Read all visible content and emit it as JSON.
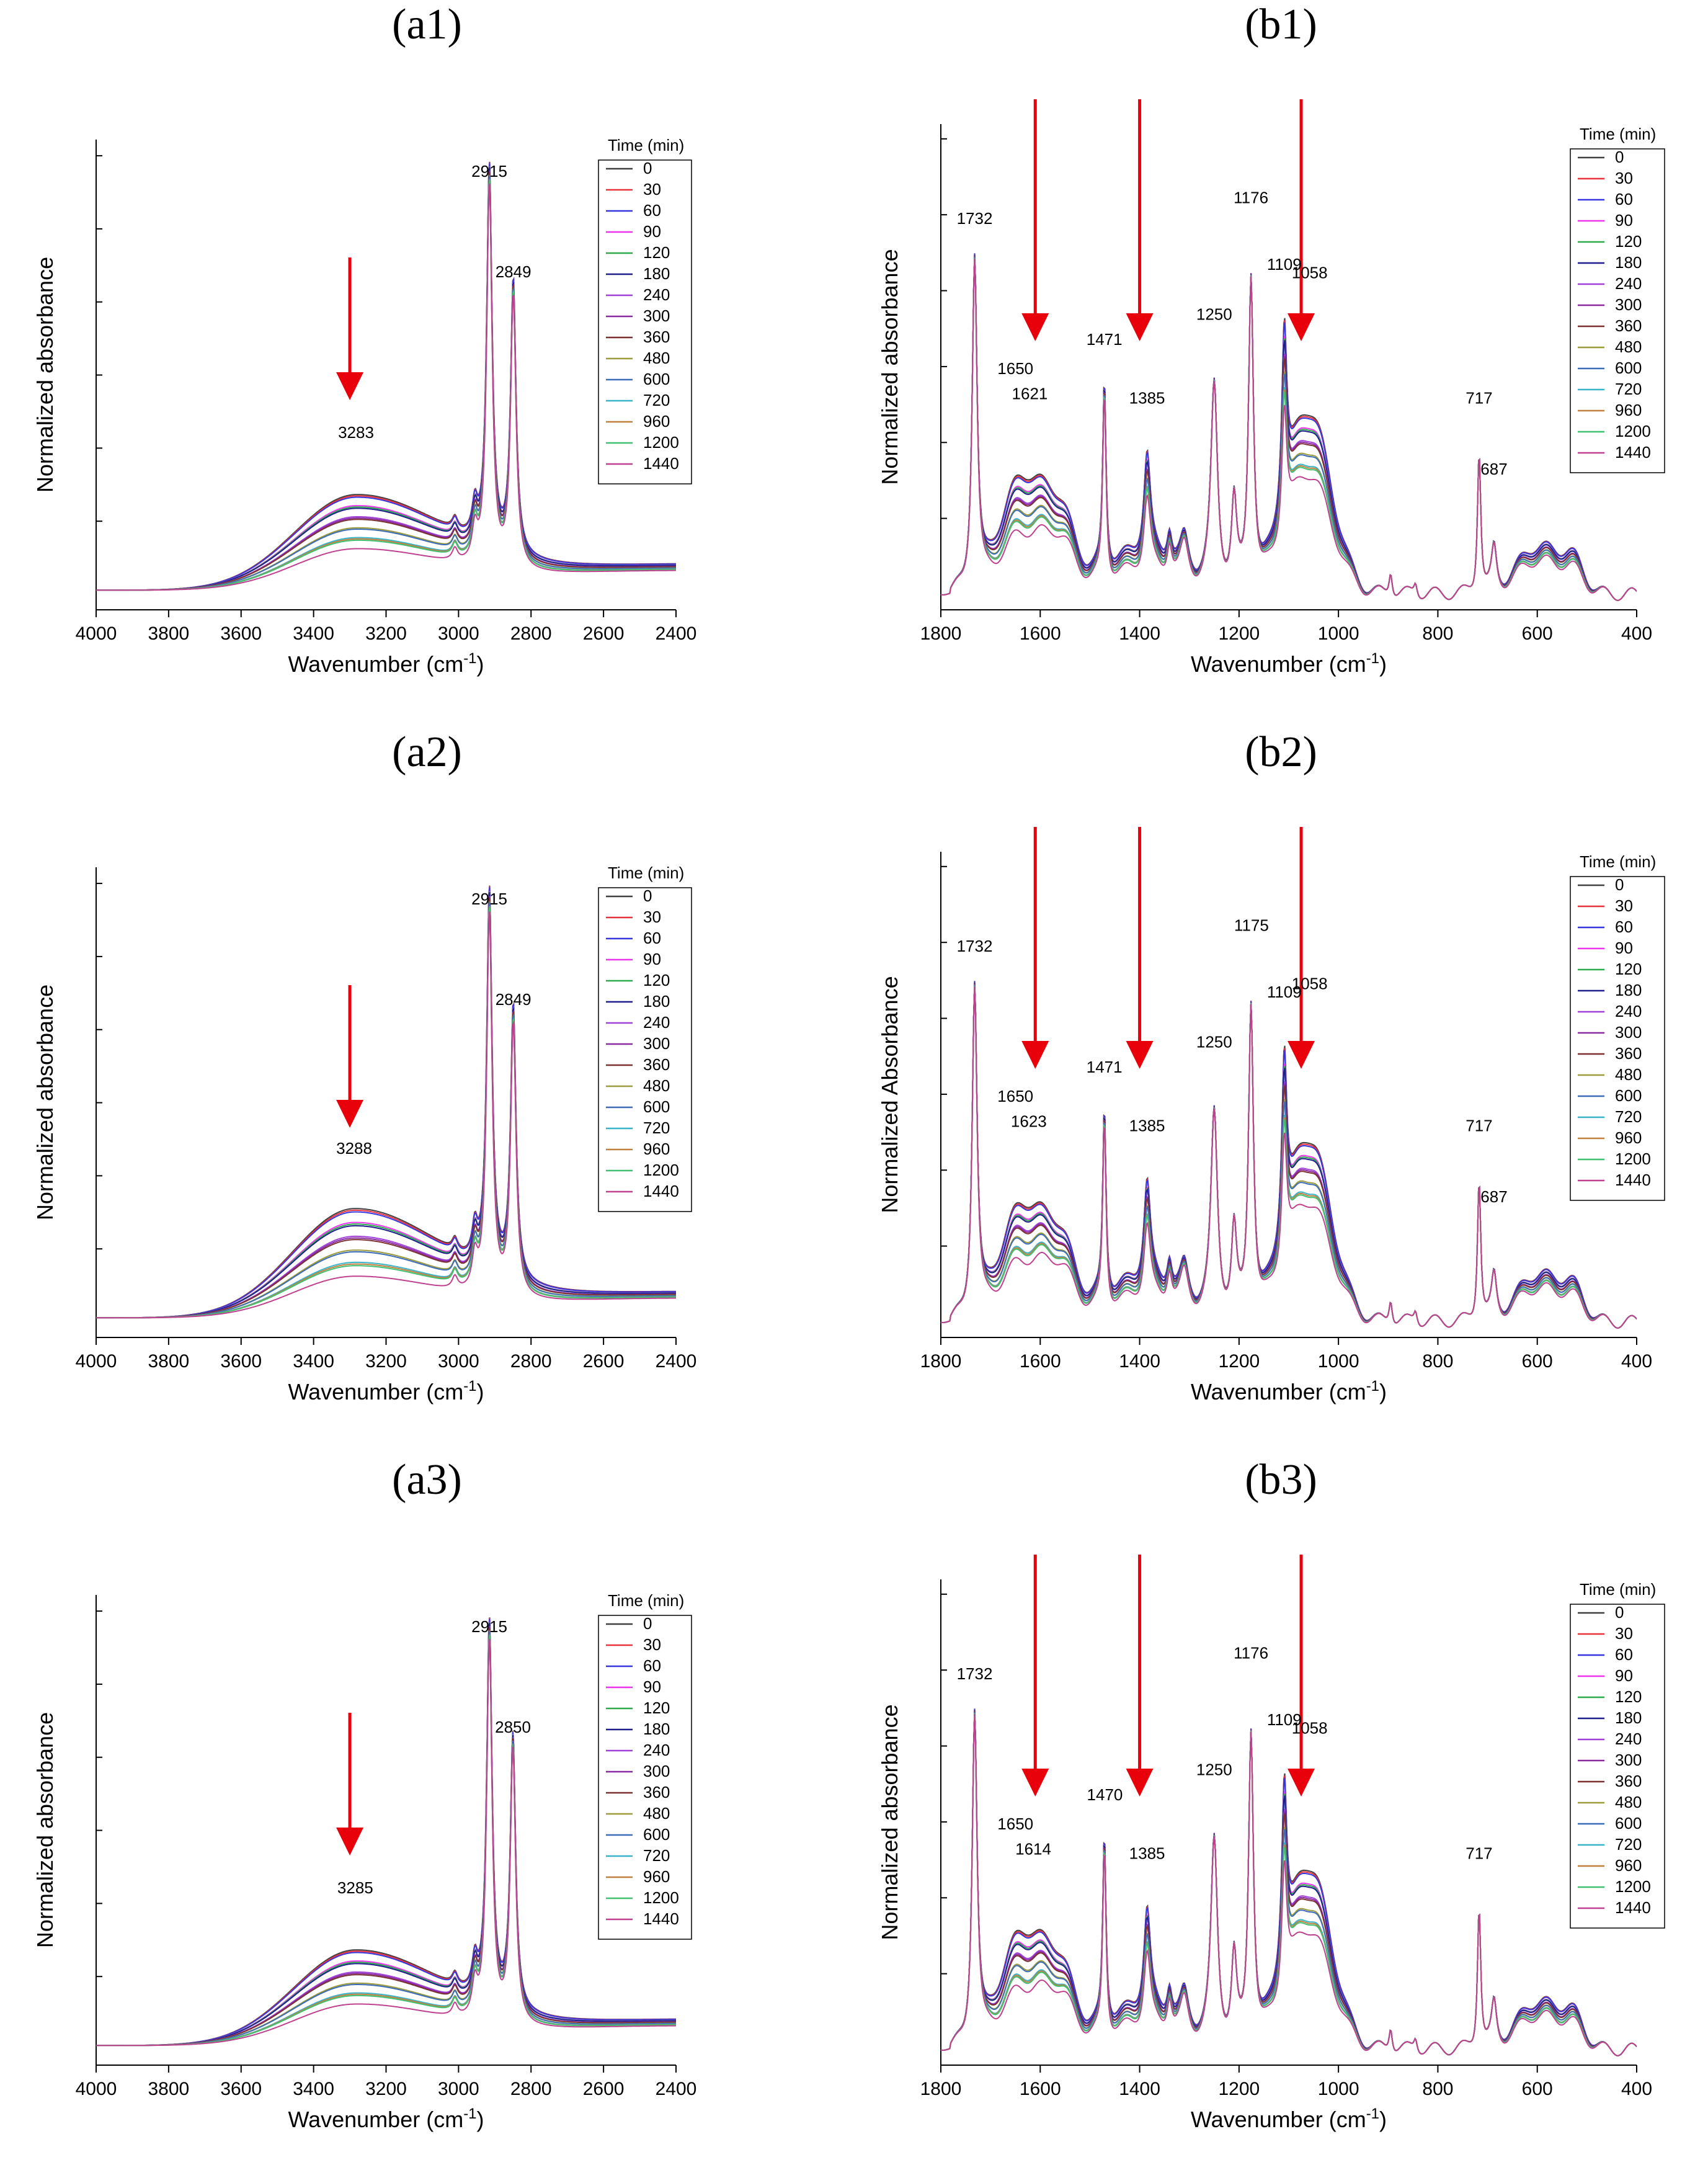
{
  "legend_title": "Time (min)",
  "legend_items": [
    {
      "label": "0",
      "color": "#404040"
    },
    {
      "label": "30",
      "color": "#e8333d"
    },
    {
      "label": "60",
      "color": "#3636e0"
    },
    {
      "label": "90",
      "color": "#ee33ee"
    },
    {
      "label": "120",
      "color": "#2eaa4c"
    },
    {
      "label": "180",
      "color": "#1e1e8c"
    },
    {
      "label": "240",
      "color": "#a040d8"
    },
    {
      "label": "300",
      "color": "#8a2aa0"
    },
    {
      "label": "360",
      "color": "#7c3030"
    },
    {
      "label": "480",
      "color": "#9c9c3c"
    },
    {
      "label": "600",
      "color": "#3c6cb8"
    },
    {
      "label": "720",
      "color": "#38b4c8"
    },
    {
      "label": "960",
      "color": "#c08040"
    },
    {
      "label": "1200",
      "color": "#40c070"
    },
    {
      "label": "1440",
      "color": "#c04090"
    }
  ],
  "arrow_color": "#e8000b",
  "chart_data": [
    {
      "id": "a1",
      "type": "line",
      "title": "(a1)",
      "xlabel": "Wavenumber (cm-1)",
      "ylabel": "Normalized absorbance",
      "xlim": [
        4000,
        2400
      ],
      "xticks": [
        4000,
        3800,
        3600,
        3400,
        3200,
        3000,
        2800,
        2600,
        2400
      ],
      "arrows": [
        3300
      ],
      "annotations": [
        {
          "label": "3283",
          "x": 3283,
          "y": 0.35
        },
        {
          "label": "2915",
          "x": 2915,
          "y": 1.0
        },
        {
          "label": "2849",
          "x": 2849,
          "y": 0.75
        }
      ],
      "peaks": [
        {
          "x": 2915,
          "h": 0.95
        },
        {
          "x": 2849,
          "h": 0.68
        },
        {
          "x": 2955,
          "h": 0.08
        },
        {
          "x": 3010,
          "h": 0.03
        }
      ],
      "broad": {
        "x": 3283,
        "max": 0.26,
        "min": 0.1
      }
    },
    {
      "id": "b1",
      "type": "line",
      "title": "(b1)",
      "xlabel": "Wavenumber (cm-1)",
      "ylabel": "Normalized absorbance",
      "xlim": [
        1800,
        400
      ],
      "xticks": [
        1800,
        1600,
        1400,
        1200,
        1000,
        800,
        600,
        400
      ],
      "arrows": [
        1610,
        1400,
        1075
      ],
      "annotations": [
        {
          "label": "1732",
          "x": 1732,
          "y": 0.85
        },
        {
          "label": "1650",
          "x": 1650,
          "y": 0.49
        },
        {
          "label": "1621",
          "x": 1621,
          "y": 0.43
        },
        {
          "label": "1471",
          "x": 1471,
          "y": 0.56
        },
        {
          "label": "1385",
          "x": 1385,
          "y": 0.42
        },
        {
          "label": "1250",
          "x": 1250,
          "y": 0.62
        },
        {
          "label": "1176",
          "x": 1176,
          "y": 0.9
        },
        {
          "label": "1109",
          "x": 1109,
          "y": 0.74
        },
        {
          "label": "1058",
          "x": 1058,
          "y": 0.72
        },
        {
          "label": "717",
          "x": 717,
          "y": 0.42
        },
        {
          "label": "687",
          "x": 687,
          "y": 0.25
        }
      ]
    },
    {
      "id": "a2",
      "type": "line",
      "title": "(a2)",
      "xlabel": "Wavenumber (cm-1)",
      "ylabel": "Normalized absorbance",
      "xlim": [
        4000,
        2400
      ],
      "xticks": [
        4000,
        3800,
        3600,
        3400,
        3200,
        3000,
        2800,
        2600,
        2400
      ],
      "arrows": [
        3300
      ],
      "annotations": [
        {
          "label": "3288",
          "x": 3288,
          "y": 0.38
        },
        {
          "label": "2915",
          "x": 2915,
          "y": 1.0
        },
        {
          "label": "2849",
          "x": 2849,
          "y": 0.75
        }
      ],
      "peaks": [
        {
          "x": 2915,
          "h": 0.95
        },
        {
          "x": 2849,
          "h": 0.68
        },
        {
          "x": 2955,
          "h": 0.08
        },
        {
          "x": 3010,
          "h": 0.03
        }
      ],
      "broad": {
        "x": 3288,
        "max": 0.3,
        "min": 0.1
      }
    },
    {
      "id": "b2",
      "type": "line",
      "title": "(b2)",
      "xlabel": "Wavenumber (cm-1)",
      "ylabel": "Normalized Absorbance",
      "xlim": [
        1800,
        400
      ],
      "xticks": [
        1800,
        1600,
        1400,
        1200,
        1000,
        800,
        600,
        400
      ],
      "arrows": [
        1610,
        1400,
        1075
      ],
      "annotations": [
        {
          "label": "1732",
          "x": 1732,
          "y": 0.85
        },
        {
          "label": "1650",
          "x": 1650,
          "y": 0.49
        },
        {
          "label": "1623",
          "x": 1623,
          "y": 0.43
        },
        {
          "label": "1471",
          "x": 1471,
          "y": 0.56
        },
        {
          "label": "1385",
          "x": 1385,
          "y": 0.42
        },
        {
          "label": "1250",
          "x": 1250,
          "y": 0.62
        },
        {
          "label": "1175",
          "x": 1175,
          "y": 0.9
        },
        {
          "label": "1109",
          "x": 1109,
          "y": 0.74
        },
        {
          "label": "1058",
          "x": 1058,
          "y": 0.76
        },
        {
          "label": "717",
          "x": 717,
          "y": 0.42
        },
        {
          "label": "687",
          "x": 687,
          "y": 0.25
        }
      ]
    },
    {
      "id": "a3",
      "type": "line",
      "title": "(a3)",
      "xlabel": "Wavenumber (cm-1)",
      "ylabel": "Normalized absorbance",
      "xlim": [
        4000,
        2400
      ],
      "xticks": [
        4000,
        3800,
        3600,
        3400,
        3200,
        3000,
        2800,
        2600,
        2400
      ],
      "arrows": [
        3300
      ],
      "annotations": [
        {
          "label": "3285",
          "x": 3285,
          "y": 0.35
        },
        {
          "label": "2915",
          "x": 2915,
          "y": 1.0
        },
        {
          "label": "2850",
          "x": 2850,
          "y": 0.75
        }
      ],
      "peaks": [
        {
          "x": 2915,
          "h": 0.95
        },
        {
          "x": 2850,
          "h": 0.68
        },
        {
          "x": 2955,
          "h": 0.08
        },
        {
          "x": 3010,
          "h": 0.03
        }
      ],
      "broad": {
        "x": 3285,
        "max": 0.26,
        "min": 0.1
      }
    },
    {
      "id": "b3",
      "type": "line",
      "title": "(b3)",
      "xlabel": "Wavenumber (cm-1)",
      "ylabel": "Normalized absorbance",
      "xlim": [
        1800,
        400
      ],
      "xticks": [
        1800,
        1600,
        1400,
        1200,
        1000,
        800,
        600,
        400
      ],
      "arrows": [
        1610,
        1400,
        1075
      ],
      "annotations": [
        {
          "label": "1732",
          "x": 1732,
          "y": 0.85
        },
        {
          "label": "1650",
          "x": 1650,
          "y": 0.49
        },
        {
          "label": "1614",
          "x": 1614,
          "y": 0.43
        },
        {
          "label": "1470",
          "x": 1470,
          "y": 0.56
        },
        {
          "label": "1385",
          "x": 1385,
          "y": 0.42
        },
        {
          "label": "1250",
          "x": 1250,
          "y": 0.62
        },
        {
          "label": "1176",
          "x": 1176,
          "y": 0.9
        },
        {
          "label": "1109",
          "x": 1109,
          "y": 0.74
        },
        {
          "label": "1058",
          "x": 1058,
          "y": 0.72
        },
        {
          "label": "717",
          "x": 717,
          "y": 0.42
        }
      ]
    }
  ]
}
